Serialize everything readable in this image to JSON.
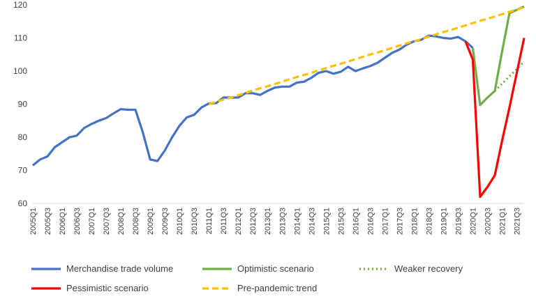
{
  "chart_data": {
    "type": "line",
    "categories": [
      "2005Q1",
      null,
      "2005Q3",
      null,
      "2006Q1",
      null,
      "2006Q3",
      null,
      "2007Q1",
      null,
      "2007Q3",
      null,
      "2008Q1",
      null,
      "2008Q3",
      null,
      "2009Q1",
      null,
      "2009Q3",
      null,
      "2010Q1",
      null,
      "2010Q3",
      null,
      "2011Q1",
      null,
      "2011Q3",
      null,
      "2012Q1",
      null,
      "2012Q3",
      null,
      "2013Q1",
      null,
      "2013Q3",
      null,
      "2014Q1",
      null,
      "2014Q3",
      null,
      "2015Q1",
      null,
      "2015Q3",
      null,
      "2016Q1",
      null,
      "2016Q3",
      null,
      "2017Q1",
      null,
      "2017Q3",
      null,
      "2018Q1",
      null,
      "2018Q3",
      null,
      "2019Q1",
      null,
      "2019Q3",
      null,
      "2020Q1",
      null,
      "2020Q3",
      null,
      "2021Q1",
      null,
      "2021Q3",
      null
    ],
    "series": [
      {
        "name": "Merchandise trade volume",
        "color": "#4472c4",
        "dash": "solid",
        "values": [
          71.5,
          73.3,
          74.2,
          77,
          78.5,
          80,
          80.5,
          82.8,
          84,
          85,
          85.8,
          87.2,
          88.5,
          88.3,
          88.3,
          81.5,
          73.3,
          72.8,
          76,
          80,
          83.5,
          86,
          86.8,
          89,
          90.2,
          90.3,
          92,
          92,
          92,
          93.3,
          93.3,
          92.8,
          94,
          95,
          95.3,
          95.3,
          96.5,
          96.8,
          98,
          99.5,
          100,
          99.2,
          99.8,
          101.3,
          100,
          100.8,
          101.5,
          102.5,
          104,
          105.5,
          106.5,
          108,
          109,
          109.5,
          110.7,
          110.5,
          110,
          109.8,
          110.3,
          109,
          107,
          null,
          null,
          null,
          null,
          null,
          null,
          null
        ]
      },
      {
        "name": "Optimistic scenario",
        "color": "#70ad47",
        "dash": "solid",
        "values": [
          null,
          null,
          null,
          null,
          null,
          null,
          null,
          null,
          null,
          null,
          null,
          null,
          null,
          null,
          null,
          null,
          null,
          null,
          null,
          null,
          null,
          null,
          null,
          null,
          null,
          null,
          null,
          null,
          null,
          null,
          null,
          null,
          null,
          null,
          null,
          null,
          null,
          null,
          null,
          null,
          null,
          null,
          null,
          null,
          null,
          null,
          null,
          null,
          null,
          null,
          null,
          null,
          null,
          null,
          null,
          null,
          null,
          null,
          null,
          null,
          107,
          89.7,
          92,
          94,
          106,
          117.5,
          118.5,
          119.5
        ]
      },
      {
        "name": "Weaker recovery",
        "color": "#70ad47",
        "dash": "dotted",
        "values": [
          null,
          null,
          null,
          null,
          null,
          null,
          null,
          null,
          null,
          null,
          null,
          null,
          null,
          null,
          null,
          null,
          null,
          null,
          null,
          null,
          null,
          null,
          null,
          null,
          null,
          null,
          null,
          null,
          null,
          null,
          null,
          null,
          null,
          null,
          null,
          null,
          null,
          null,
          null,
          null,
          null,
          null,
          null,
          null,
          null,
          null,
          null,
          null,
          null,
          null,
          null,
          null,
          null,
          null,
          null,
          null,
          null,
          null,
          null,
          null,
          null,
          null,
          null,
          94,
          96.2,
          98.4,
          100.6,
          102.8
        ]
      },
      {
        "name": "Pessimistic scenario",
        "color": "#ff0000",
        "dash": "solid",
        "values": [
          null,
          null,
          null,
          null,
          null,
          null,
          null,
          null,
          null,
          null,
          null,
          null,
          null,
          null,
          null,
          null,
          null,
          null,
          null,
          null,
          null,
          null,
          null,
          null,
          null,
          null,
          null,
          null,
          null,
          null,
          null,
          null,
          null,
          null,
          null,
          null,
          null,
          null,
          null,
          null,
          null,
          null,
          null,
          null,
          null,
          null,
          null,
          null,
          null,
          null,
          null,
          null,
          null,
          null,
          null,
          null,
          null,
          null,
          null,
          109,
          103.5,
          62,
          65,
          68.5,
          79,
          89,
          99.5,
          110
        ]
      },
      {
        "name": "Pre-pandemic trend",
        "color": "#ffc000",
        "dash": "dashed",
        "values": [
          null,
          null,
          null,
          null,
          null,
          null,
          null,
          null,
          null,
          null,
          null,
          null,
          null,
          null,
          null,
          null,
          null,
          null,
          null,
          null,
          null,
          null,
          null,
          null,
          90.0,
          90.7,
          91.4,
          92.0,
          92.7,
          93.4,
          94.1,
          94.8,
          95.4,
          96.1,
          96.8,
          97.5,
          98.2,
          98.8,
          99.5,
          100.2,
          100.9,
          101.6,
          102.2,
          102.9,
          103.6,
          104.3,
          105.0,
          105.6,
          106.3,
          107.0,
          107.7,
          108.4,
          109.0,
          109.7,
          110.4,
          111.1,
          111.8,
          112.4,
          113.1,
          113.8,
          114.5,
          115.2,
          115.8,
          116.5,
          117.2,
          117.9,
          118.6,
          119.2
        ]
      }
    ],
    "ylim": [
      60,
      120
    ],
    "yticks": [
      60,
      70,
      80,
      90,
      100,
      110,
      120
    ],
    "grid": false,
    "legend": "bottom"
  }
}
